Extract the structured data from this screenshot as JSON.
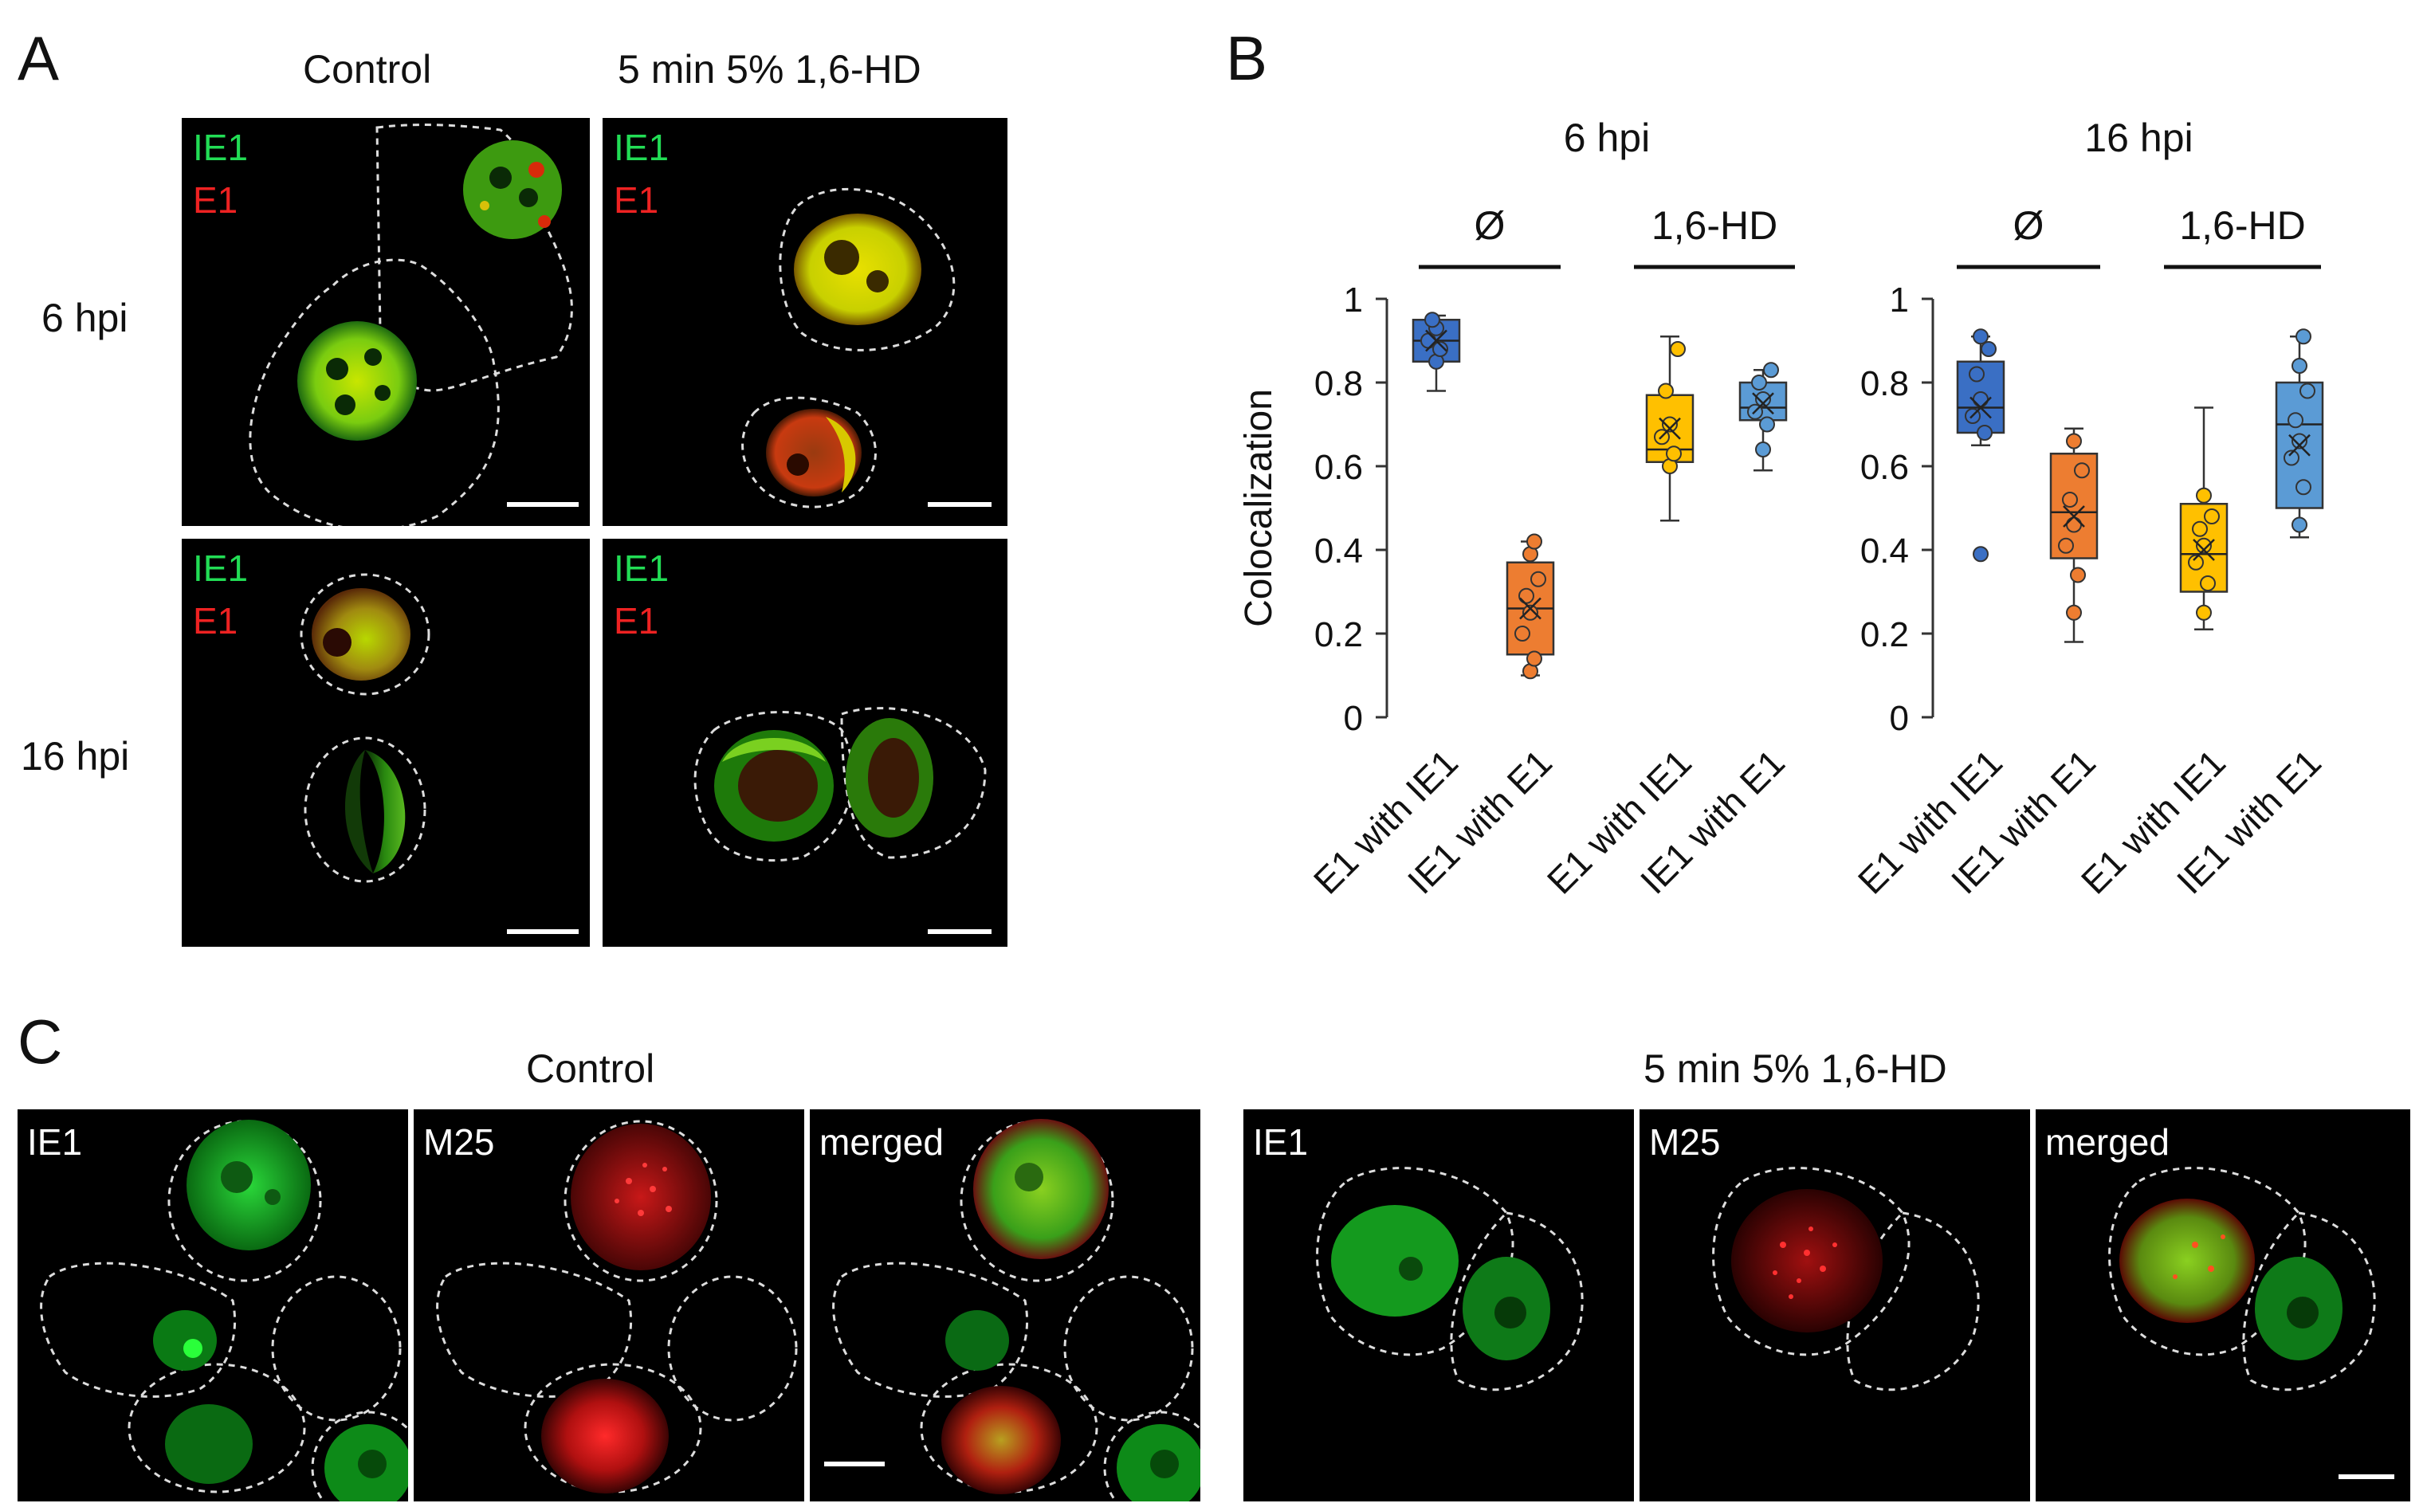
{
  "panels": {
    "a": "A",
    "b": "B",
    "c": "C"
  },
  "panel_a": {
    "col_control": "Control",
    "col_hd": "5 min  5% 1,6-HD",
    "row_6": "6 hpi",
    "row_16": "16 hpi",
    "ch_green": "IE1",
    "ch_red": "E1"
  },
  "panel_c": {
    "col_control": "Control",
    "col_hd": "5 min  5% 1,6-HD",
    "ch1": "IE1",
    "ch2": "M25",
    "ch3": "merged"
  },
  "chart_data": [
    {
      "type": "box",
      "title": "6 hpi",
      "ylabel": "Colocalization",
      "ylim": [
        0,
        1
      ],
      "yticks": [
        "0",
        "0.2",
        "0.4",
        "0.6",
        "0.8",
        "1"
      ],
      "groups": [
        {
          "label": "Ø",
          "categories": [
            0,
            1
          ]
        },
        {
          "label": "1,6-HD",
          "categories": [
            2,
            3
          ]
        }
      ],
      "categories": [
        "E1 with IE1",
        "IE1 with E1",
        "E1 with IE1",
        "IE1 with E1"
      ],
      "boxes": [
        {
          "color": "#3a6fc4",
          "min": 0.78,
          "q1": 0.85,
          "median": 0.9,
          "q3": 0.95,
          "max": 0.96,
          "mean": 0.9,
          "points": [
            0.85,
            0.88,
            0.9,
            0.93,
            0.95
          ]
        },
        {
          "color": "#ed7d31",
          "min": 0.1,
          "q1": 0.15,
          "median": 0.26,
          "q3": 0.37,
          "max": 0.42,
          "mean": 0.26,
          "points": [
            0.11,
            0.14,
            0.2,
            0.25,
            0.29,
            0.33,
            0.39,
            0.42
          ]
        },
        {
          "color": "#ffc000",
          "min": 0.47,
          "q1": 0.61,
          "median": 0.64,
          "q3": 0.77,
          "max": 0.91,
          "mean": 0.69,
          "points": [
            0.6,
            0.63,
            0.67,
            0.7,
            0.78,
            0.88
          ]
        },
        {
          "color": "#5b9bd5",
          "min": 0.59,
          "q1": 0.71,
          "median": 0.74,
          "q3": 0.8,
          "max": 0.83,
          "mean": 0.75,
          "points": [
            0.64,
            0.7,
            0.73,
            0.76,
            0.8,
            0.83
          ]
        }
      ]
    },
    {
      "type": "box",
      "title": "16 hpi",
      "ylabel": "",
      "ylim": [
        0,
        1
      ],
      "yticks": [
        "0",
        "0.2",
        "0.4",
        "0.6",
        "0.8",
        "1"
      ],
      "groups": [
        {
          "label": "Ø",
          "categories": [
            0,
            1
          ]
        },
        {
          "label": "1,6-HD",
          "categories": [
            2,
            3
          ]
        }
      ],
      "categories": [
        "E1 with IE1",
        "IE1 with E1",
        "E1 with IE1",
        "IE1 with E1"
      ],
      "boxes": [
        {
          "color": "#3a6fc4",
          "min": 0.65,
          "q1": 0.68,
          "median": 0.74,
          "q3": 0.85,
          "max": 0.91,
          "mean": 0.74,
          "points": [
            0.39,
            0.68,
            0.72,
            0.76,
            0.82,
            0.88,
            0.91
          ]
        },
        {
          "color": "#ed7d31",
          "min": 0.18,
          "q1": 0.38,
          "median": 0.49,
          "q3": 0.63,
          "max": 0.69,
          "mean": 0.48,
          "points": [
            0.25,
            0.34,
            0.41,
            0.46,
            0.52,
            0.59,
            0.66
          ]
        },
        {
          "color": "#ffc000",
          "min": 0.21,
          "q1": 0.3,
          "median": 0.39,
          "q3": 0.51,
          "max": 0.74,
          "mean": 0.4,
          "points": [
            0.25,
            0.32,
            0.37,
            0.41,
            0.45,
            0.48,
            0.53
          ]
        },
        {
          "color": "#5b9bd5",
          "min": 0.43,
          "q1": 0.5,
          "median": 0.7,
          "q3": 0.8,
          "max": 0.91,
          "mean": 0.65,
          "points": [
            0.46,
            0.55,
            0.62,
            0.66,
            0.71,
            0.78,
            0.84,
            0.91
          ]
        }
      ]
    }
  ]
}
